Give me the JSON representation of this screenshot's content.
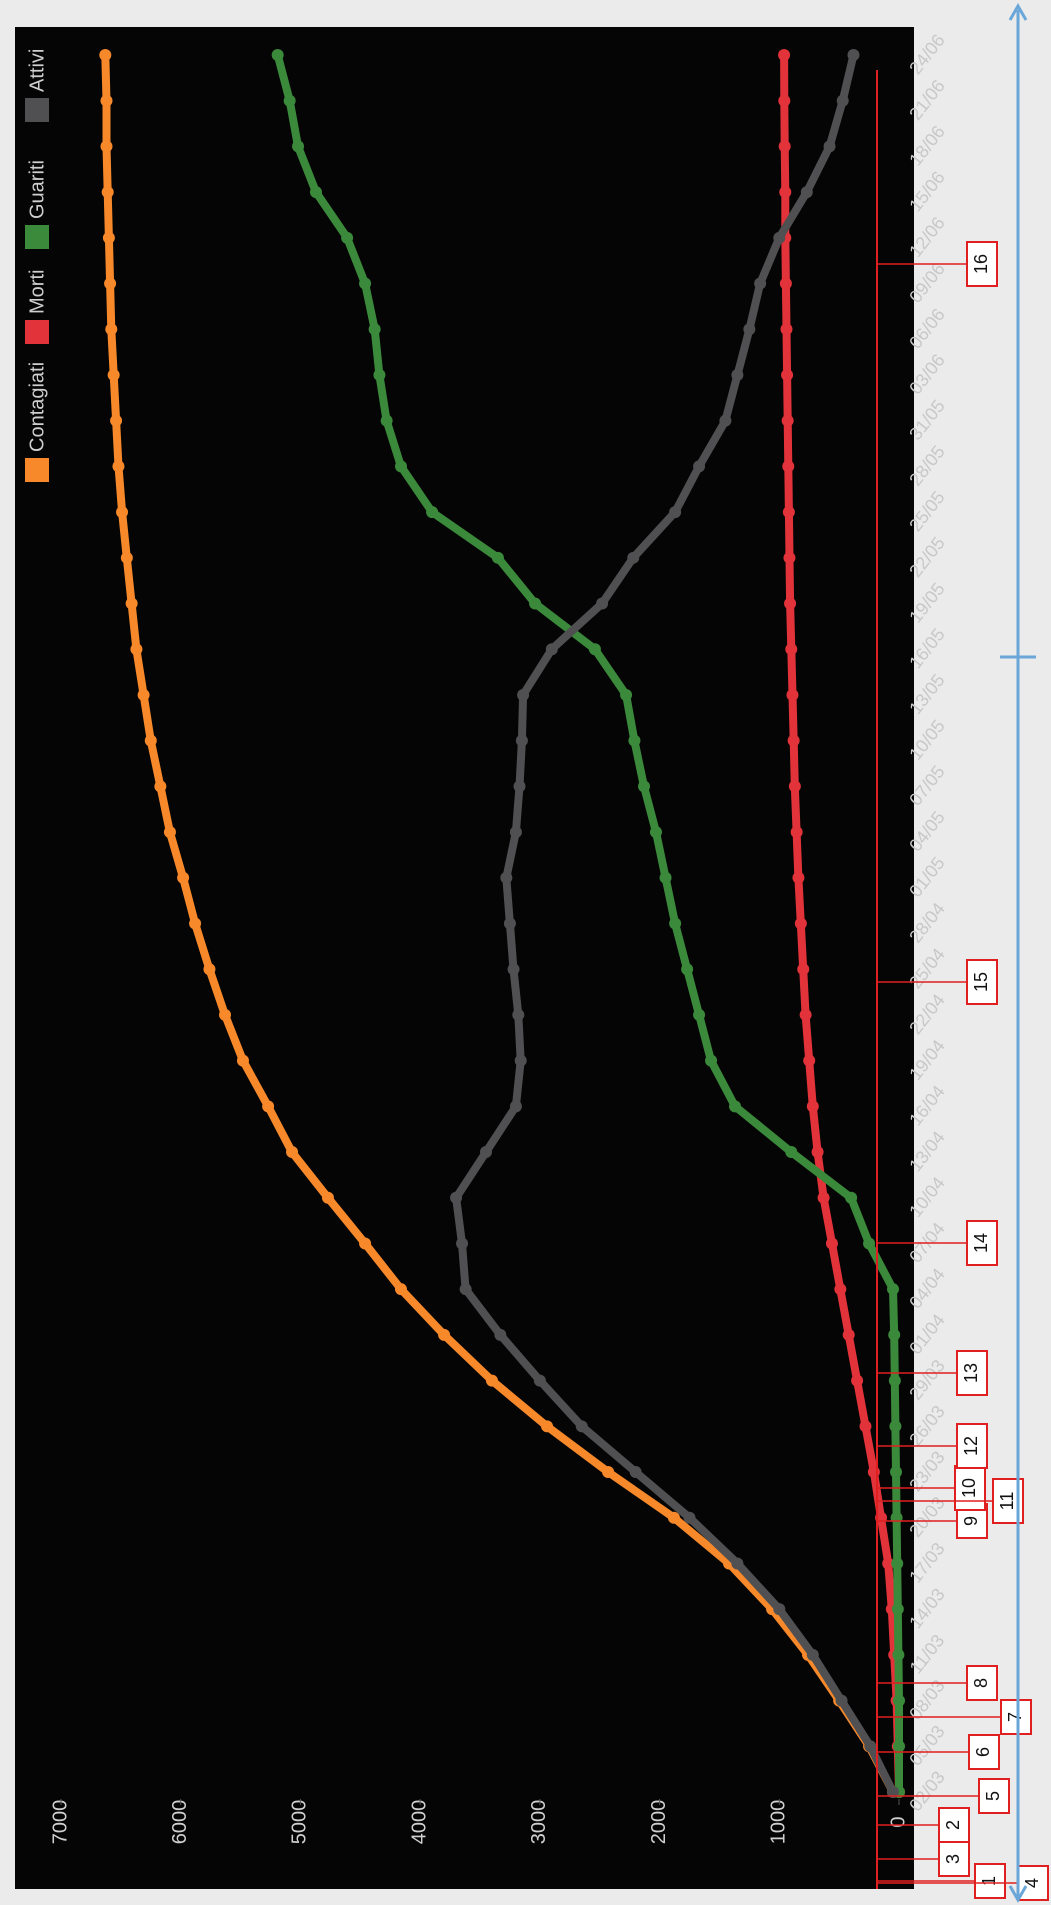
{
  "chart_data": {
    "type": "line",
    "categories": [
      "02/03",
      "05/03",
      "08/03",
      "11/03",
      "14/03",
      "17/03",
      "20/03",
      "23/03",
      "26/03",
      "29/03",
      "01/04",
      "04/04",
      "07/04",
      "10/04",
      "13/04",
      "16/04",
      "19/04",
      "22/04",
      "25/04",
      "28/04",
      "01/05",
      "04/05",
      "07/05",
      "10/05",
      "13/05",
      "16/05",
      "19/05",
      "22/05",
      "25/05",
      "28/05",
      "31/05",
      "03/06",
      "06/06",
      "09/06",
      "12/06",
      "15/06",
      "18/06",
      "21/06",
      "24/06"
    ],
    "series": [
      {
        "name": "Contagiati",
        "color": "#f7892b",
        "values": [
          50,
          250,
          500,
          760,
          1060,
          1420,
          1880,
          2430,
          2940,
          3400,
          3800,
          4160,
          4460,
          4770,
          5070,
          5270,
          5480,
          5630,
          5760,
          5880,
          5980,
          6090,
          6170,
          6250,
          6310,
          6370,
          6410,
          6450,
          6490,
          6520,
          6540,
          6560,
          6580,
          6590,
          6600,
          6610,
          6620,
          6620,
          6630
        ]
      },
      {
        "name": "Morti",
        "color": "#e2333a",
        "values": [
          0,
          10,
          20,
          40,
          60,
          90,
          150,
          210,
          280,
          350,
          420,
          490,
          560,
          630,
          680,
          720,
          750,
          780,
          800,
          820,
          840,
          855,
          870,
          880,
          890,
          900,
          910,
          915,
          920,
          925,
          930,
          935,
          940,
          945,
          950,
          950,
          955,
          958,
          960
        ]
      },
      {
        "name": "Guariti",
        "color": "#3b8a3b",
        "values": [
          0,
          0,
          0,
          5,
          10,
          15,
          20,
          25,
          30,
          35,
          40,
          50,
          250,
          400,
          900,
          1370,
          1570,
          1670,
          1770,
          1870,
          1950,
          2030,
          2130,
          2210,
          2280,
          2540,
          3040,
          3350,
          3900,
          4160,
          4280,
          4340,
          4380,
          4460,
          4610,
          4870,
          5020,
          5090,
          5190
        ]
      },
      {
        "name": "Attivi",
        "color": "#505052",
        "values": [
          50,
          240,
          480,
          720,
          1000,
          1350,
          1750,
          2200,
          2650,
          3000,
          3330,
          3620,
          3650,
          3700,
          3450,
          3200,
          3160,
          3180,
          3220,
          3250,
          3280,
          3200,
          3170,
          3150,
          3140,
          2900,
          2480,
          2220,
          1870,
          1670,
          1450,
          1350,
          1250,
          1160,
          1000,
          770,
          580,
          470,
          380
        ]
      }
    ],
    "ylim": [
      0,
      7000
    ],
    "yticks": [
      0,
      1000,
      2000,
      3000,
      4000,
      5000,
      6000,
      7000
    ],
    "grid": false,
    "legend": "top-left",
    "annotations": [
      "1",
      "2",
      "3",
      "4",
      "5",
      "6",
      "7",
      "8",
      "9",
      "10",
      "11",
      "12",
      "13",
      "14",
      "15",
      "16"
    ]
  }
}
